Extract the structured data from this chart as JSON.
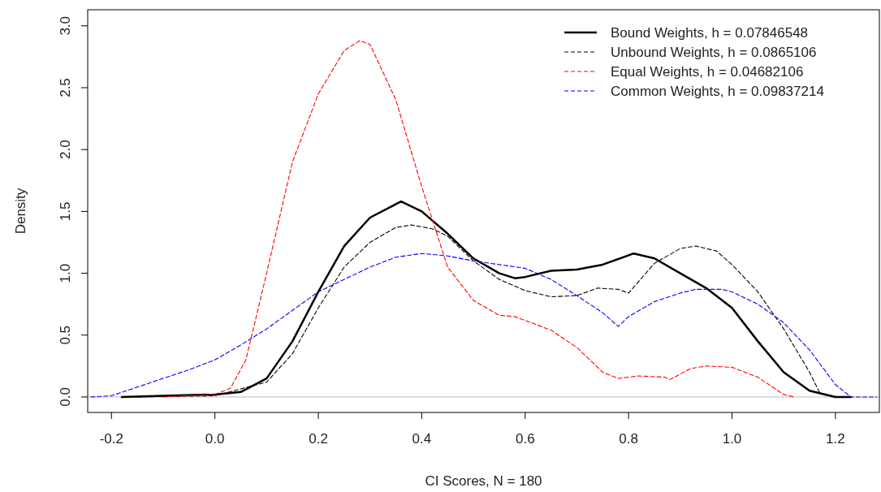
{
  "chart_data": {
    "type": "line",
    "xlabel": "CI Scores, N = 180",
    "ylabel": "Density",
    "xlim": [
      -0.246,
      1.285
    ],
    "ylim": [
      -0.125,
      3.13
    ],
    "xticks": [
      -0.2,
      {
        "value": 0,
        "label": "0.0"
      },
      0.2,
      0.4,
      0.6,
      0.8,
      {
        "value": 1,
        "label": "1.0"
      },
      1.2
    ],
    "yticks": [
      {
        "value": 0,
        "label": "0.0"
      },
      0.5,
      {
        "value": 1,
        "label": "1.0"
      },
      1.5,
      {
        "value": 2,
        "label": "2.0"
      },
      2.5,
      {
        "value": 3,
        "label": "3.0"
      }
    ],
    "grid": false,
    "legend": "top right",
    "ref_lines": [
      {
        "axis": "y",
        "value": 0,
        "color": "#bebebe"
      }
    ],
    "series": [
      {
        "name": "Bound Weights, h = 0.07846548",
        "color": "#000000",
        "line_style": "solid",
        "x": [
          -0.18,
          -0.1,
          0,
          0.05,
          0.1,
          0.15,
          0.2,
          0.25,
          0.3,
          0.36,
          0.4,
          0.45,
          0.5,
          0.55,
          0.58,
          0.6,
          0.65,
          0.7,
          0.75,
          0.81,
          0.85,
          0.9,
          0.95,
          1,
          1.05,
          1.1,
          1.15,
          1.2,
          1.23
        ],
        "values": [
          0,
          0.01,
          0.02,
          0.04,
          0.15,
          0.45,
          0.85,
          1.22,
          1.45,
          1.58,
          1.5,
          1.32,
          1.12,
          1,
          0.96,
          0.97,
          1.02,
          1.03,
          1.07,
          1.16,
          1.12,
          1,
          0.88,
          0.72,
          0.45,
          0.2,
          0.05,
          0,
          0
        ]
      },
      {
        "name": "Unbound Weights, h = 0.0865106",
        "color": "#000000",
        "line_style": "dashed",
        "x": [
          -0.15,
          0,
          0.1,
          0.15,
          0.2,
          0.25,
          0.3,
          0.35,
          0.38,
          0.42,
          0.45,
          0.5,
          0.55,
          0.6,
          0.65,
          0.7,
          0.74,
          0.78,
          0.8,
          0.85,
          0.9,
          0.93,
          0.97,
          1,
          1.05,
          1.1,
          1.15,
          1.17,
          1.2,
          1.22
        ],
        "values": [
          0,
          0.01,
          0.12,
          0.35,
          0.72,
          1.05,
          1.25,
          1.37,
          1.39,
          1.36,
          1.3,
          1.1,
          0.95,
          0.86,
          0.81,
          0.82,
          0.88,
          0.87,
          0.84,
          1.08,
          1.2,
          1.22,
          1.18,
          1.07,
          0.85,
          0.55,
          0.2,
          0.03,
          0,
          0
        ]
      },
      {
        "name": "Equal Weights, h = 0.04682106",
        "color": "#ff0000",
        "line_style": "dashed",
        "x": [
          -0.1,
          0,
          0.03,
          0.06,
          0.1,
          0.15,
          0.2,
          0.25,
          0.28,
          0.3,
          0.35,
          0.4,
          0.45,
          0.5,
          0.55,
          0.58,
          0.65,
          0.7,
          0.75,
          0.78,
          0.82,
          0.87,
          0.88,
          0.92,
          0.95,
          1,
          1.05,
          1.1,
          1.12
        ],
        "values": [
          0,
          0.02,
          0.07,
          0.3,
          1,
          1.9,
          2.45,
          2.8,
          2.88,
          2.85,
          2.4,
          1.7,
          1.05,
          0.78,
          0.66,
          0.65,
          0.54,
          0.4,
          0.2,
          0.15,
          0.17,
          0.16,
          0.14,
          0.23,
          0.25,
          0.24,
          0.16,
          0.02,
          0
        ]
      },
      {
        "name": "Common Weights, h = 0.09837214",
        "color": "#0000ff",
        "line_style": "dashed",
        "x": [
          -0.24,
          -0.2,
          -0.15,
          -0.1,
          -0.05,
          0,
          0.05,
          0.1,
          0.15,
          0.2,
          0.25,
          0.3,
          0.35,
          0.4,
          0.45,
          0.5,
          0.55,
          0.6,
          0.65,
          0.7,
          0.75,
          0.78,
          0.8,
          0.85,
          0.9,
          0.93,
          0.98,
          1,
          1.05,
          1.1,
          1.15,
          1.2,
          1.23,
          1.28
        ],
        "values": [
          0,
          0.01,
          0.08,
          0.15,
          0.22,
          0.3,
          0.42,
          0.55,
          0.7,
          0.85,
          0.95,
          1.05,
          1.13,
          1.16,
          1.14,
          1.1,
          1.07,
          1.04,
          0.95,
          0.82,
          0.68,
          0.57,
          0.65,
          0.77,
          0.84,
          0.87,
          0.87,
          0.85,
          0.75,
          0.6,
          0.38,
          0.1,
          0,
          0
        ]
      }
    ]
  }
}
